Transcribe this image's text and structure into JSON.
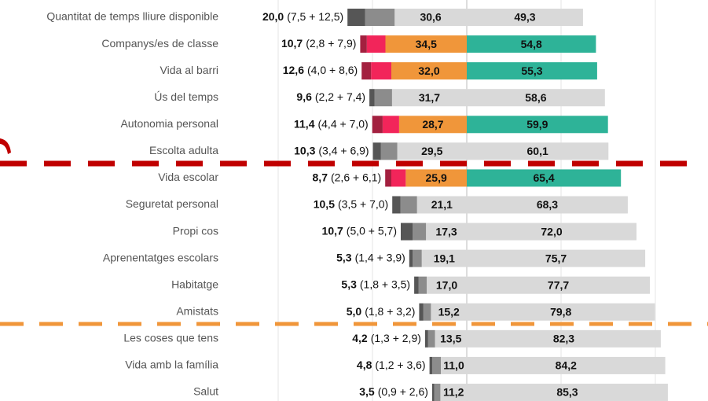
{
  "chart_data": {
    "type": "diverging-bar",
    "categories": [
      "Quantitat de temps lliure disponible",
      "Companys/es de classe",
      "Vida al barri",
      "Ús del temps",
      "Autonomia personal",
      "Escolta adulta",
      "Vida escolar",
      "Seguretat personal",
      "Propi cos",
      "Aprenentatges escolars",
      "Habitatge",
      "Amistats",
      "Les coses que tens",
      "Vida amb la família",
      "Salut"
    ],
    "totals": [
      20.0,
      10.7,
      12.6,
      9.6,
      11.4,
      10.3,
      8.7,
      10.5,
      10.7,
      5.3,
      5.3,
      5.0,
      4.2,
      4.8,
      3.5
    ],
    "total_labels": [
      "20,0",
      "10,7",
      "12,6",
      "9,6",
      "11,4",
      "10,3",
      "8,7",
      "10,5",
      "10,7",
      "5,3",
      "5,3",
      "5,0",
      "4,2",
      "4,8",
      "3,5"
    ],
    "detail_labels": [
      "(7,5 + 12,5)",
      "(2,8 + 7,9)",
      "(4,0 + 8,6)",
      "(2,2 + 7,4)",
      "(4,4 + 7,0)",
      "(3,4 + 6,9)",
      "(2,6 + 6,1)",
      "(3,5 + 7,0)",
      "(5,0 + 5,7)",
      "(1,4 + 3,9)",
      "(1,8 + 3,5)",
      "(1,8 + 3,2)",
      "(1,3 + 2,9)",
      "(1,2 + 3,6)",
      "(0,9 + 2,6)"
    ],
    "highlight": [
      false,
      true,
      true,
      false,
      true,
      false,
      true,
      false,
      false,
      false,
      false,
      false,
      false,
      false,
      false
    ],
    "series": [
      {
        "side": "left",
        "color": "#565656",
        "highlight_color": "#a3203f",
        "values": [
          7.5,
          2.8,
          4.0,
          2.2,
          4.4,
          3.4,
          2.6,
          3.5,
          5.0,
          1.4,
          1.8,
          1.8,
          1.3,
          1.2,
          0.9
        ]
      },
      {
        "side": "left",
        "color": "#8c8c8c",
        "highlight_color": "#f2255a",
        "values": [
          12.5,
          7.9,
          8.6,
          7.4,
          7.0,
          6.9,
          6.1,
          7.0,
          5.7,
          3.9,
          3.5,
          3.2,
          2.9,
          3.6,
          2.6
        ]
      },
      {
        "side": "left",
        "color": "#d9d9d9",
        "highlight_color": "#f0963a",
        "values": [
          30.6,
          34.5,
          32.0,
          31.7,
          28.7,
          29.5,
          25.9,
          21.1,
          17.3,
          19.1,
          17.0,
          15.2,
          13.5,
          11.0,
          11.2
        ],
        "value_labels": [
          "30,6",
          "34,5",
          "32,0",
          "31,7",
          "28,7",
          "29,5",
          "25,9",
          "21,1",
          "17,3",
          "19,1",
          "17,0",
          "15,2",
          "13,5",
          "11,0",
          "11,2"
        ]
      },
      {
        "side": "right",
        "color": "#d9d9d9",
        "highlight_color": "#2eb398",
        "values": [
          49.3,
          54.8,
          55.3,
          58.6,
          59.9,
          60.1,
          65.4,
          68.3,
          72.0,
          75.7,
          77.7,
          79.8,
          82.3,
          84.2,
          85.3
        ],
        "value_labels": [
          "49,3",
          "54,8",
          "55,3",
          "58,6",
          "59,9",
          "60,1",
          "65,4",
          "68,3",
          "72,0",
          "75,7",
          "77,7",
          "79,8",
          "82,3",
          "84,2",
          "85,3"
        ]
      }
    ],
    "xlim": [
      -80,
      90
    ],
    "xticks": [
      -80,
      -40,
      0,
      40,
      80
    ],
    "grid": true
  }
}
